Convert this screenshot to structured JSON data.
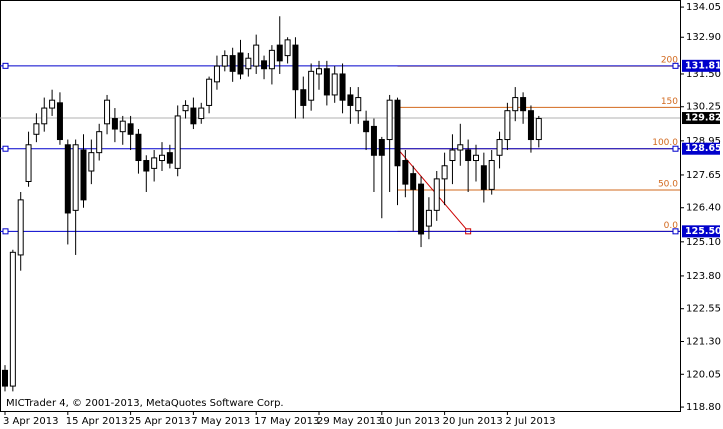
{
  "chart_data": {
    "type": "candlestick",
    "categories": [
      "3 Apr 2013",
      null,
      null,
      null,
      null,
      null,
      null,
      null,
      "15 Apr 2013",
      null,
      null,
      null,
      null,
      null,
      null,
      null,
      "25 Apr 2013",
      null,
      null,
      null,
      null,
      null,
      null,
      null,
      "7 May 2013",
      null,
      null,
      null,
      null,
      null,
      null,
      null,
      "17 May 2013",
      null,
      null,
      null,
      null,
      null,
      null,
      null,
      "29 May 2013",
      null,
      null,
      null,
      null,
      null,
      null,
      null,
      "10 Jun 2013",
      null,
      null,
      null,
      null,
      null,
      null,
      null,
      "20 Jun 2013",
      null,
      null,
      null,
      null,
      null,
      null,
      null,
      "2 Jul 2013",
      null,
      null,
      null,
      null
    ],
    "open": [
      120.2,
      119.6,
      124.6,
      127.4,
      129.2,
      129.6,
      130.2,
      130.4,
      128.8,
      126.3,
      128.6,
      127.8,
      128.5,
      129.6,
      129.8,
      129.3,
      129.6,
      129.2,
      128.2,
      127.9,
      128.2,
      128.5,
      127.9,
      130.1,
      130.2,
      129.8,
      130.3,
      131.2,
      131.8,
      132.2,
      132.3,
      131.7,
      131.8,
      132.0,
      131.7,
      132.6,
      132.2,
      132.6,
      130.9,
      130.5,
      131.5,
      131.7,
      130.7,
      131.5,
      130.7,
      130.1,
      129.7,
      129.5,
      129.0,
      129.0,
      130.5,
      128.2,
      127.7,
      127.3,
      125.7,
      126.3,
      127.5,
      128.2,
      128.6,
      128.6,
      128.2,
      128.0,
      127.1,
      128.4,
      129.0,
      130.1,
      130.6,
      130.1,
      129.0
    ],
    "high": [
      120.4,
      124.8,
      127.0,
      129.3,
      130.0,
      130.6,
      130.9,
      130.8,
      129.0,
      129.0,
      129.2,
      129.0,
      129.6,
      130.7,
      130.2,
      129.9,
      129.9,
      129.4,
      128.4,
      128.6,
      128.9,
      128.8,
      130.3,
      130.5,
      130.6,
      130.4,
      131.4,
      132.2,
      132.4,
      132.5,
      132.8,
      132.3,
      133.0,
      132.2,
      132.6,
      133.7,
      132.9,
      132.9,
      131.4,
      131.9,
      132.0,
      132.0,
      131.8,
      131.9,
      131.0,
      131.0,
      130.1,
      129.8,
      129.1,
      130.7,
      130.6,
      128.6,
      128.0,
      127.6,
      126.8,
      127.8,
      128.5,
      129.2,
      129.6,
      129.0,
      128.8,
      128.5,
      128.6,
      129.3,
      130.4,
      131.0,
      130.8,
      130.3,
      129.9
    ],
    "low": [
      119.4,
      119.4,
      124.0,
      127.2,
      128.9,
      129.3,
      129.9,
      128.8,
      125.0,
      124.6,
      126.4,
      127.3,
      128.2,
      129.2,
      128.9,
      128.8,
      128.6,
      127.7,
      127.0,
      127.4,
      127.8,
      127.9,
      127.6,
      129.8,
      129.4,
      129.6,
      130.0,
      130.9,
      131.6,
      131.2,
      131.3,
      131.4,
      131.5,
      131.3,
      131.1,
      131.5,
      131.9,
      129.8,
      129.8,
      130.1,
      130.9,
      130.3,
      130.4,
      130.0,
      129.6,
      129.6,
      128.6,
      127.0,
      126.0,
      127.0,
      126.5,
      126.8,
      125.5,
      124.9,
      125.2,
      125.9,
      126.5,
      127.3,
      128.0,
      127.0,
      127.4,
      126.6,
      126.9,
      127.9,
      128.6,
      129.7,
      129.6,
      128.5,
      128.7
    ],
    "close": [
      119.6,
      124.7,
      126.7,
      128.8,
      129.6,
      130.2,
      130.5,
      129.0,
      126.2,
      128.8,
      126.7,
      128.5,
      129.3,
      130.5,
      129.4,
      129.7,
      129.2,
      128.2,
      127.8,
      128.3,
      128.4,
      128.1,
      129.9,
      130.3,
      129.6,
      130.2,
      131.3,
      131.8,
      132.2,
      131.6,
      131.5,
      132.1,
      132.6,
      131.7,
      132.4,
      132.0,
      132.8,
      130.9,
      130.3,
      131.6,
      131.7,
      130.7,
      131.5,
      130.5,
      130.3,
      130.6,
      129.3,
      128.4,
      128.4,
      130.5,
      128.0,
      127.3,
      127.1,
      125.4,
      126.3,
      127.5,
      128.0,
      128.6,
      128.8,
      128.2,
      128.4,
      127.1,
      128.2,
      129.0,
      130.1,
      130.6,
      130.1,
      129.0,
      129.8
    ],
    "ylim": [
      118.65,
      134.32
    ],
    "yticks": [
      134.05,
      {
        "value": 132.9,
        "label": "132.90"
      },
      {
        "value": 131.5,
        "label": "131.50"
      },
      130.25,
      128.95,
      127.65,
      {
        "value": 126.4,
        "label": "126.40"
      },
      {
        "value": 125.1,
        "label": "125.10"
      },
      {
        "value": 123.8,
        "label": "123.80"
      },
      122.55,
      {
        "value": 121.3,
        "label": "121.30"
      },
      120.05,
      {
        "value": 118.8,
        "label": "118.80"
      }
    ],
    "hlines": [
      131.81,
      128.65,
      {
        "value": 125.5,
        "label": "125.50"
      }
    ],
    "hline_color": "#0000cc",
    "bid": 129.82,
    "bid_color": "#b0b0b0",
    "fibo": {
      "color": "#d2691e",
      "anchors": [
        128.65,
        125.5
      ],
      "anchor_x": [
        50,
        59
      ],
      "levels": [
        200,
        150,
        {
          "value": 100,
          "label": "100.0"
        },
        {
          "value": 50,
          "label": "50.0"
        },
        {
          "value": 0,
          "label": "0.0"
        }
      ]
    },
    "footer": "MICTrader 4, © 2001-2013, MetaQuotes Software Corp."
  }
}
